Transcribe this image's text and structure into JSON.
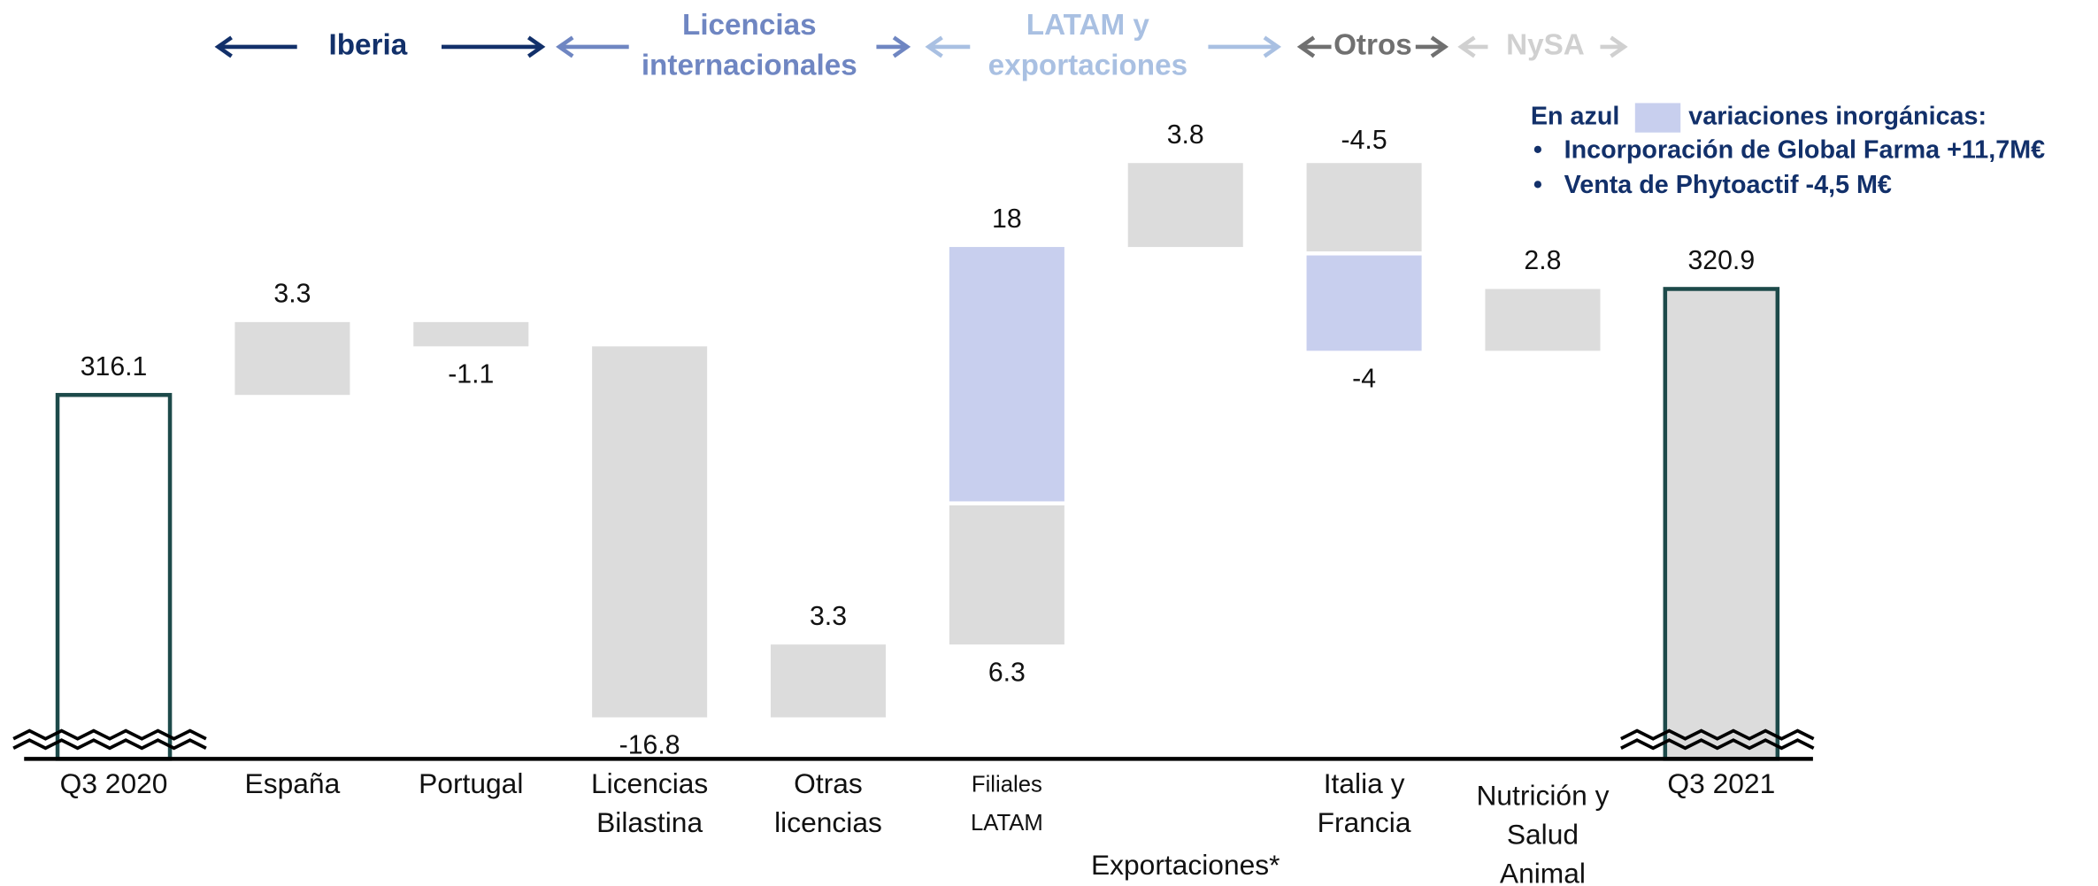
{
  "chart_data": {
    "type": "waterfall",
    "ylim": [
      299.5,
      329.5
    ],
    "colors": {
      "step": "#dcdcdc",
      "inorganic": "#c8cfee",
      "total_stroke": "#1d4a4a",
      "final_fill": "#dcdcdc",
      "axis": "#000000"
    },
    "regions": [
      {
        "lines": [
          "Iberia"
        ],
        "color": "#12306a"
      },
      {
        "lines": [
          "Licencias",
          "internacionales"
        ],
        "color": "#6f86c2"
      },
      {
        "lines": [
          "LATAM y",
          "exportaciones"
        ],
        "color": "#a9c0e2"
      },
      {
        "lines": [
          "Otros"
        ],
        "color": "#707070"
      },
      {
        "lines": [
          "NySA"
        ],
        "color": "#d0d0d0"
      }
    ],
    "note": {
      "prefix": "En azul",
      "suffix": "variaciones inorgánicas:",
      "items": [
        "Incorporación de Global Farma +11,7M€",
        "Venta de Phytoactif -4,5 M€"
      ],
      "color": "#12306a"
    },
    "bars": [
      {
        "category": [
          "Q3 2020"
        ],
        "kind": "total",
        "value": 316.1
      },
      {
        "category": [
          "España"
        ],
        "value": 3.3
      },
      {
        "category": [
          "Portugal"
        ],
        "value": -1.1
      },
      {
        "category": [
          "Licencias",
          "Bilastina"
        ],
        "value": -16.8
      },
      {
        "category": [
          "Otras",
          "licencias"
        ],
        "value": 3.3
      },
      {
        "category": [
          "Filiales",
          "LATAM"
        ],
        "value": 6.3,
        "inorganic": 11.7,
        "total": 18.0
      },
      {
        "category": [
          "Exportaciones*"
        ],
        "value": 3.8
      },
      {
        "category": [
          "Italia y",
          "Francia"
        ],
        "value": -4,
        "inorganic": -4.5
      },
      {
        "category": [
          "Nutrición y",
          "Salud",
          "Animal"
        ],
        "value": 2.8
      },
      {
        "category": [
          "Q3 2021"
        ],
        "kind": "total",
        "value": 320.9
      }
    ]
  }
}
